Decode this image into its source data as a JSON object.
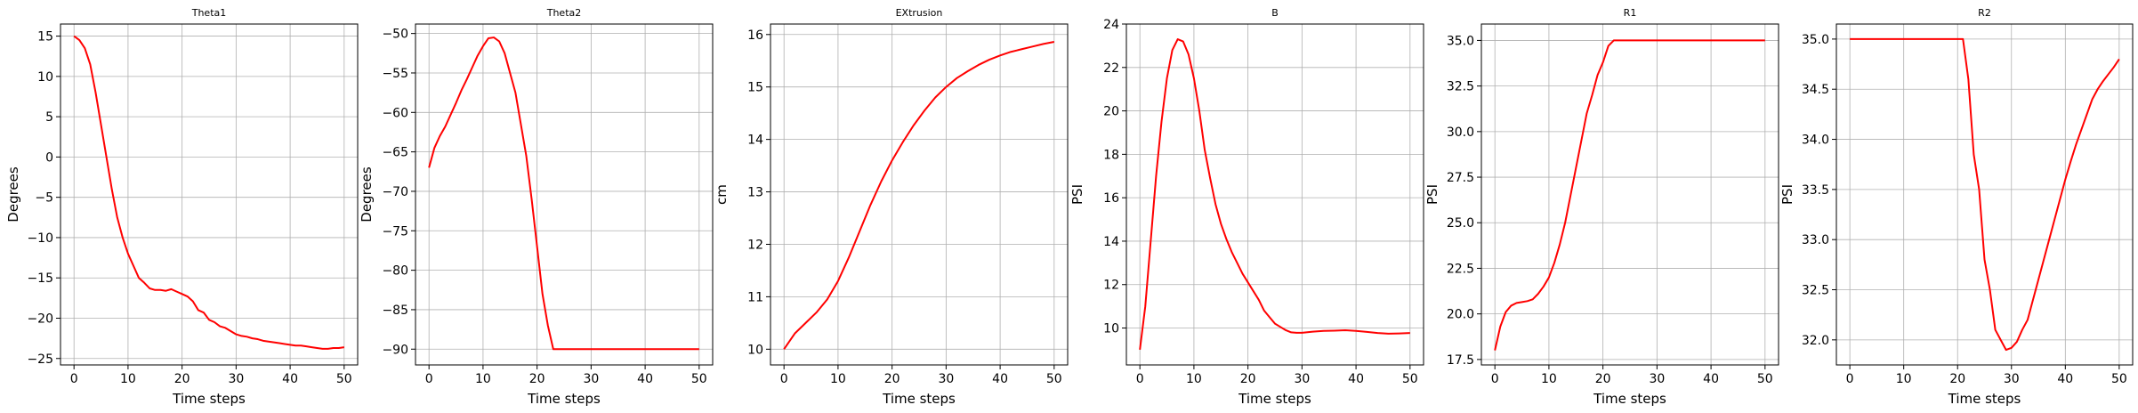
{
  "chart_data": [
    {
      "type": "line",
      "title": "Theta1",
      "xlabel": "Time steps",
      "ylabel": "Degrees",
      "xlim": [
        -2.5,
        52.5
      ],
      "ylim": [
        -25.8,
        16.5
      ],
      "xticks": [
        0,
        10,
        20,
        30,
        40,
        50
      ],
      "yticks": [
        -25,
        -20,
        -15,
        -10,
        -5,
        0,
        5,
        10,
        15
      ],
      "grid": true,
      "color": "#ff0000",
      "x": [
        0,
        1,
        2,
        3,
        4,
        5,
        6,
        7,
        8,
        9,
        10,
        11,
        12,
        13,
        14,
        15,
        16,
        17,
        18,
        19,
        20,
        21,
        22,
        23,
        24,
        25,
        26,
        27,
        28,
        29,
        30,
        31,
        32,
        33,
        34,
        35,
        36,
        37,
        38,
        39,
        40,
        41,
        42,
        43,
        44,
        45,
        46,
        47,
        48,
        49,
        50
      ],
      "y": [
        15,
        14.5,
        13.5,
        11.5,
        8,
        4,
        0,
        -4,
        -7.5,
        -10,
        -12,
        -13.5,
        -15,
        -15.6,
        -16.3,
        -16.5,
        -16.5,
        -16.6,
        -16.4,
        -16.7,
        -17,
        -17.3,
        -17.9,
        -19,
        -19.3,
        -20.2,
        -20.5,
        -21,
        -21.2,
        -21.6,
        -22,
        -22.2,
        -22.3,
        -22.5,
        -22.6,
        -22.8,
        -22.9,
        -23.0,
        -23.1,
        -23.2,
        -23.3,
        -23.4,
        -23.4,
        -23.5,
        -23.6,
        -23.7,
        -23.8,
        -23.8,
        -23.7,
        -23.7,
        -23.6
      ]
    },
    {
      "type": "line",
      "title": "Theta2",
      "xlabel": "Time steps",
      "ylabel": "Degrees",
      "xlim": [
        -2.5,
        52.5
      ],
      "ylim": [
        -92,
        -48.8
      ],
      "xticks": [
        0,
        10,
        20,
        30,
        40,
        50
      ],
      "yticks": [
        -90,
        -85,
        -80,
        -75,
        -70,
        -65,
        -60,
        -55,
        -50
      ],
      "grid": true,
      "color": "#ff0000",
      "x": [
        0,
        1,
        2,
        3,
        4,
        5,
        6,
        7,
        8,
        9,
        10,
        11,
        12,
        13,
        14,
        15,
        16,
        17,
        18,
        19,
        20,
        21,
        22,
        23,
        24,
        25,
        50
      ],
      "y": [
        -67,
        -64.5,
        -63,
        -61.8,
        -60.3,
        -58.8,
        -57.2,
        -55.8,
        -54.3,
        -52.8,
        -51.6,
        -50.6,
        -50.5,
        -51,
        -52.5,
        -55,
        -57.5,
        -61.5,
        -65.5,
        -71,
        -77,
        -83,
        -87,
        -90,
        -90,
        -90,
        -90
      ]
    },
    {
      "type": "line",
      "title": "EXtrusion",
      "xlabel": "Time steps",
      "ylabel": "cm",
      "xlim": [
        -2.5,
        52.5
      ],
      "ylim": [
        9.7,
        16.2
      ],
      "xticks": [
        0,
        10,
        20,
        30,
        40,
        50
      ],
      "yticks": [
        10,
        11,
        12,
        13,
        14,
        15,
        16
      ],
      "grid": true,
      "color": "#ff0000",
      "x": [
        0,
        2,
        4,
        6,
        8,
        10,
        12,
        14,
        16,
        18,
        20,
        22,
        24,
        26,
        28,
        30,
        32,
        34,
        36,
        38,
        40,
        42,
        44,
        46,
        48,
        50
      ],
      "y": [
        10,
        10.3,
        10.5,
        10.7,
        10.95,
        11.3,
        11.75,
        12.25,
        12.75,
        13.2,
        13.6,
        13.95,
        14.27,
        14.55,
        14.8,
        15.0,
        15.17,
        15.3,
        15.42,
        15.52,
        15.6,
        15.67,
        15.72,
        15.77,
        15.82,
        15.86
      ]
    },
    {
      "type": "line",
      "title": "B",
      "xlabel": "Time steps",
      "ylabel": "PSI",
      "xlim": [
        -2.5,
        52.5
      ],
      "ylim": [
        8.3,
        24.0
      ],
      "xticks": [
        0,
        10,
        20,
        30,
        40,
        50
      ],
      "yticks": [
        10,
        12,
        14,
        16,
        18,
        20,
        22,
        24
      ],
      "grid": true,
      "color": "#ff0000",
      "x": [
        0,
        1,
        2,
        3,
        4,
        5,
        6,
        7,
        8,
        9,
        10,
        11,
        12,
        13,
        14,
        15,
        16,
        17,
        18,
        19,
        20,
        21,
        22,
        23,
        24,
        25,
        26,
        27,
        28,
        29,
        30,
        32,
        34,
        36,
        38,
        40,
        42,
        44,
        46,
        48,
        50
      ],
      "y": [
        9,
        11,
        14,
        17,
        19.5,
        21.5,
        22.8,
        23.3,
        23.2,
        22.6,
        21.5,
        20,
        18.2,
        16.9,
        15.7,
        14.8,
        14.1,
        13.5,
        13,
        12.5,
        12.1,
        11.7,
        11.3,
        10.8,
        10.5,
        10.2,
        10.05,
        9.9,
        9.8,
        9.78,
        9.78,
        9.83,
        9.87,
        9.88,
        9.9,
        9.87,
        9.82,
        9.77,
        9.74,
        9.75,
        9.77
      ]
    },
    {
      "type": "line",
      "title": "R1",
      "xlabel": "Time steps",
      "ylabel": "PSI",
      "xlim": [
        -2.5,
        52.5
      ],
      "ylim": [
        17.2,
        35.9
      ],
      "xticks": [
        0,
        10,
        20,
        30,
        40,
        50
      ],
      "yticks": [
        17.5,
        20.0,
        22.5,
        25.0,
        27.5,
        30.0,
        32.5,
        35.0
      ],
      "grid": true,
      "color": "#ff0000",
      "x": [
        0,
        1,
        2,
        3,
        4,
        5,
        6,
        7,
        8,
        9,
        10,
        11,
        12,
        13,
        14,
        15,
        16,
        17,
        18,
        19,
        20,
        21,
        22,
        23,
        50
      ],
      "y": [
        18,
        19.3,
        20.1,
        20.45,
        20.6,
        20.65,
        20.7,
        20.8,
        21.1,
        21.5,
        22,
        22.8,
        23.8,
        25,
        26.5,
        28,
        29.5,
        31,
        32,
        33.1,
        33.8,
        34.7,
        35,
        35,
        35
      ]
    },
    {
      "type": "line",
      "title": "R2",
      "xlabel": "Time steps",
      "ylabel": "PSI",
      "xlim": [
        -2.5,
        52.5
      ],
      "ylim": [
        31.75,
        35.15
      ],
      "xticks": [
        0,
        10,
        20,
        30,
        40,
        50
      ],
      "yticks": [
        32.0,
        32.5,
        33.0,
        33.5,
        34.0,
        34.5,
        35.0
      ],
      "grid": true,
      "color": "#ff0000",
      "x": [
        0,
        21,
        22,
        23,
        24,
        25,
        26,
        27,
        28,
        29,
        30,
        31,
        32,
        33,
        34,
        35,
        36,
        37,
        38,
        39,
        40,
        41,
        42,
        43,
        44,
        45,
        46,
        47,
        48,
        49,
        50
      ],
      "y": [
        35,
        35,
        34.6,
        33.85,
        33.5,
        32.8,
        32.5,
        32.1,
        32,
        31.9,
        31.92,
        31.98,
        32.1,
        32.2,
        32.4,
        32.6,
        32.8,
        33,
        33.2,
        33.4,
        33.6,
        33.78,
        33.95,
        34.1,
        34.25,
        34.4,
        34.5,
        34.58,
        34.65,
        34.72,
        34.8
      ]
    }
  ]
}
